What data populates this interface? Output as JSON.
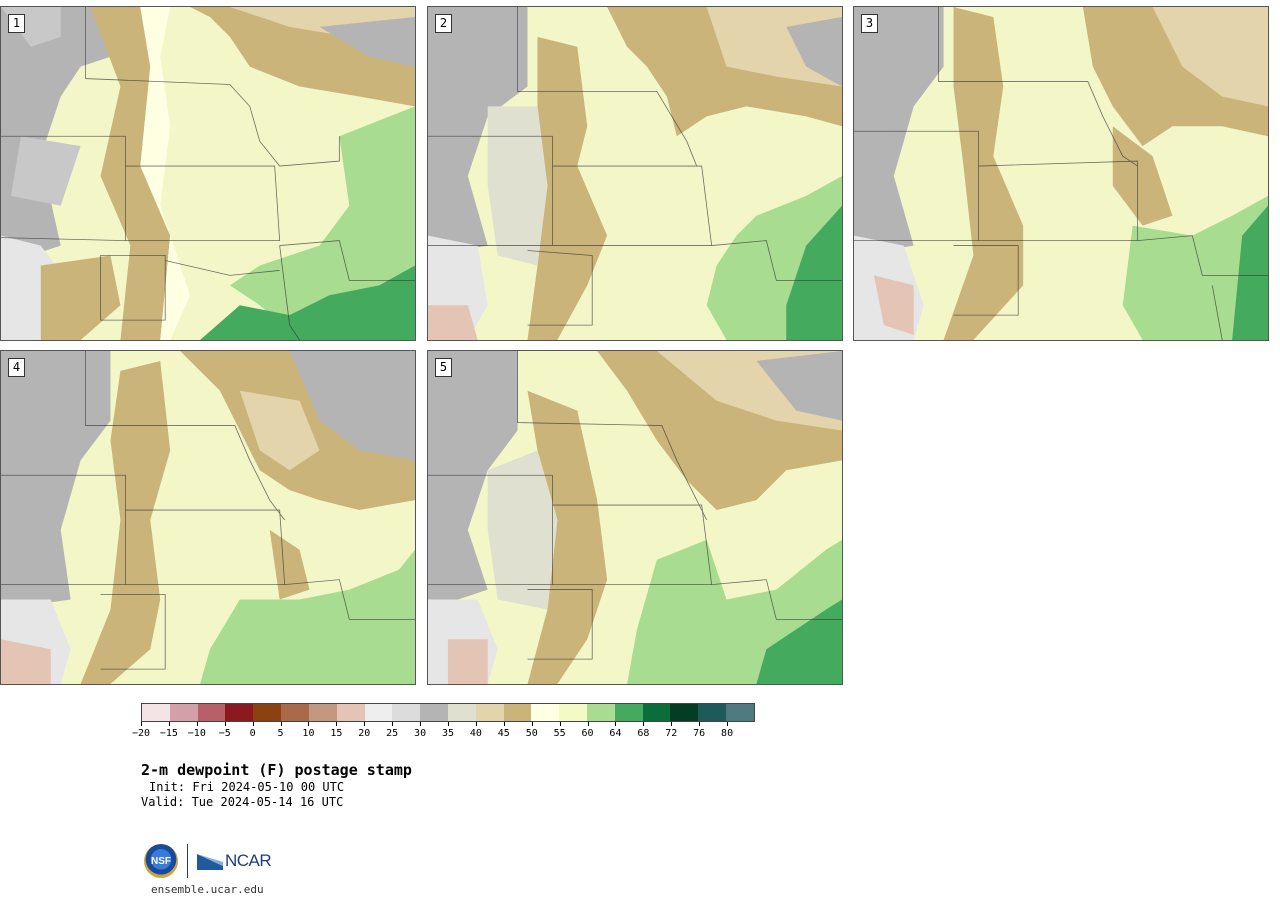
{
  "panels": [
    {
      "label": "1"
    },
    {
      "label": "2"
    },
    {
      "label": "3"
    },
    {
      "label": "4"
    },
    {
      "label": "5"
    }
  ],
  "colorbar": {
    "colors": [
      "#f4e4e6",
      "#d4a0a8",
      "#b86068",
      "#8b1a20",
      "#8c4210",
      "#a86a48",
      "#c49880",
      "#e4c4b4",
      "#eeeeee",
      "#dcdcdc",
      "#b4b4b4",
      "#e0e0d0",
      "#e4d4ac",
      "#cbb47a",
      "#ffffe4",
      "#f4fac4",
      "#a8dc90",
      "#44aa5e",
      "#0a6e3a",
      "#043e22",
      "#1e5a5a",
      "#4e7a80"
    ],
    "ticks": [
      "−20",
      "−15",
      "−10",
      "−5",
      "0",
      "5",
      "10",
      "15",
      "20",
      "25",
      "30",
      "35",
      "40",
      "45",
      "50",
      "55",
      "60",
      "64",
      "68",
      "72",
      "76",
      "80"
    ]
  },
  "title": "2-m dewpoint (F) postage stamp",
  "init": "Init: Fri 2024-05-10 00 UTC",
  "valid": "Valid: Tue 2024-05-14 16 UTC",
  "logos": {
    "nsf": "NSF",
    "ncar": "NCAR"
  },
  "url": "ensemble.ucar.edu"
}
